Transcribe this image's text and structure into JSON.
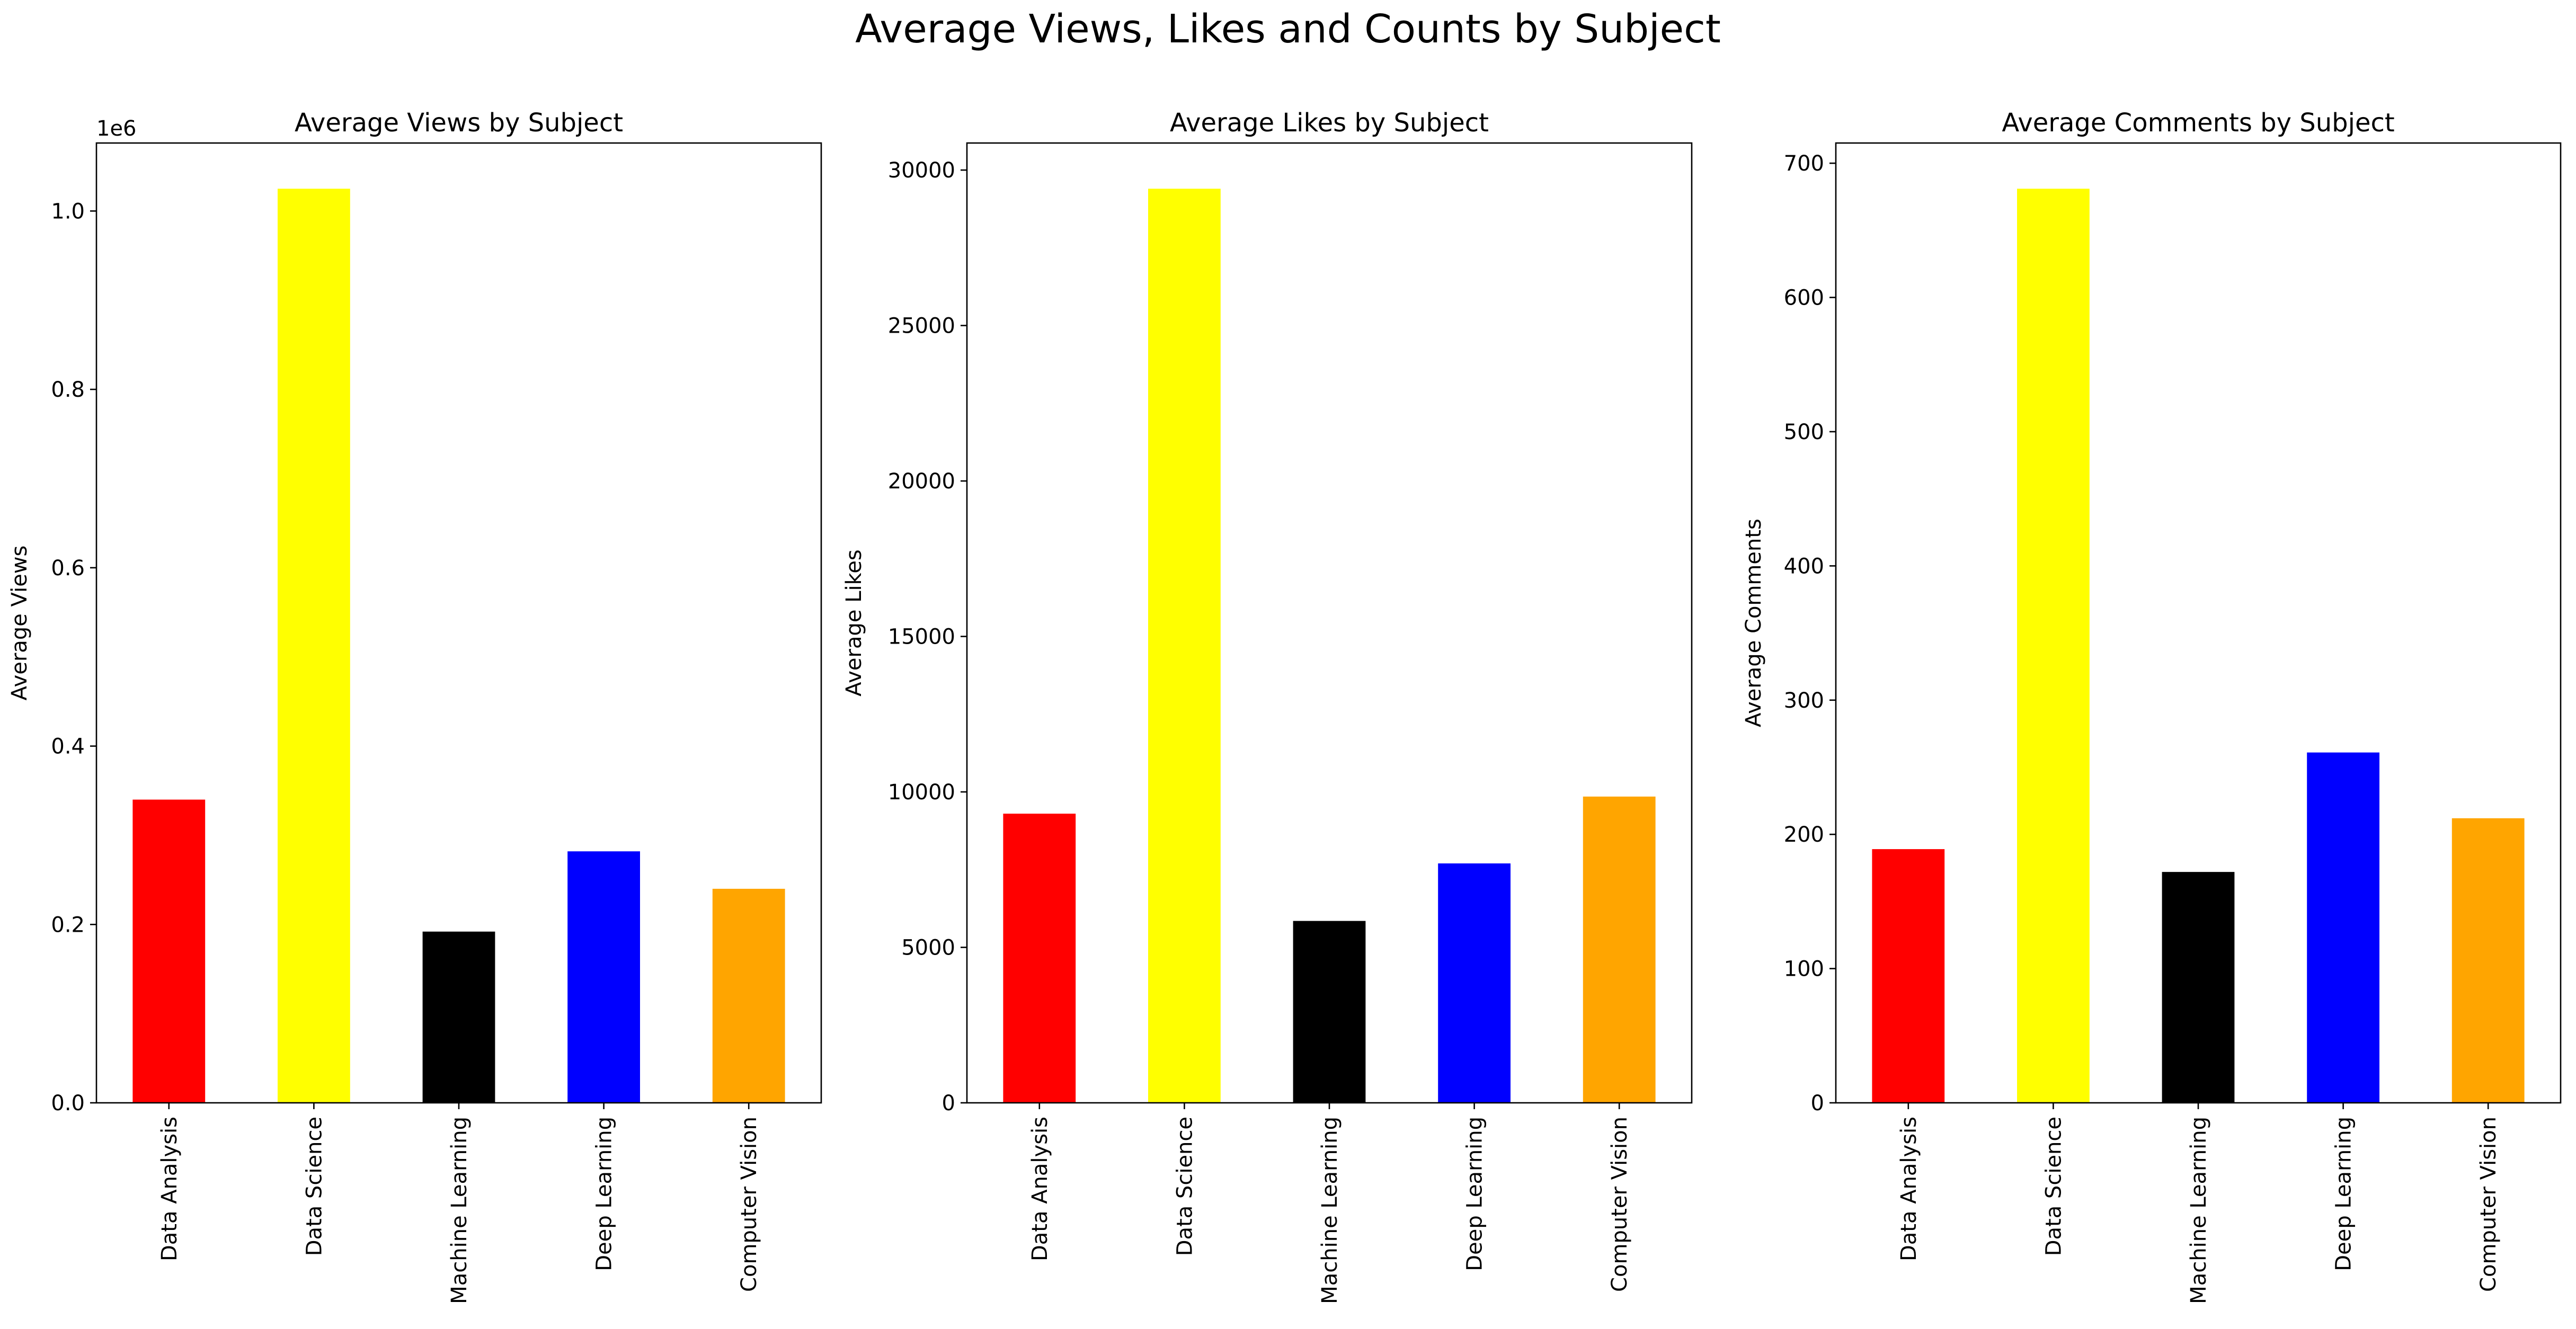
{
  "figure": {
    "title": "Average Views, Likes and Counts by Subject"
  },
  "chart_data": [
    {
      "type": "bar",
      "title": "Average Views by Subject",
      "xlabel": "",
      "ylabel": "Average Views",
      "axis_offset_label": "1e6",
      "categories": [
        "Data Analysis",
        "Data Science",
        "Machine Learning",
        "Deep Learning",
        "Computer Vision"
      ],
      "values": [
        340000,
        1025000,
        192000,
        282000,
        240000
      ],
      "colors": [
        "#ff0000",
        "#ffff00",
        "#000000",
        "#0000ff",
        "#ffa500"
      ],
      "ylim": [
        0,
        1076250
      ],
      "yticks": [
        0,
        200000,
        400000,
        600000,
        800000,
        1000000
      ],
      "ytick_labels": [
        "0.0",
        "0.2",
        "0.4",
        "0.6",
        "0.8",
        "1.0"
      ],
      "grid": false,
      "legend": "none"
    },
    {
      "type": "bar",
      "title": "Average Likes by Subject",
      "xlabel": "",
      "ylabel": "Average Likes",
      "categories": [
        "Data Analysis",
        "Data Science",
        "Machine Learning",
        "Deep Learning",
        "Computer Vision"
      ],
      "values": [
        9300,
        29400,
        5850,
        7700,
        9850
      ],
      "colors": [
        "#ff0000",
        "#ffff00",
        "#000000",
        "#0000ff",
        "#ffa500"
      ],
      "ylim": [
        0,
        30870
      ],
      "yticks": [
        0,
        5000,
        10000,
        15000,
        20000,
        25000,
        30000
      ],
      "ytick_labels": [
        "0",
        "5000",
        "10000",
        "15000",
        "20000",
        "25000",
        "30000"
      ],
      "grid": false,
      "legend": "none"
    },
    {
      "type": "bar",
      "title": "Average Comments by Subject",
      "xlabel": "",
      "ylabel": "Average Comments",
      "categories": [
        "Data Analysis",
        "Data Science",
        "Machine Learning",
        "Deep Learning",
        "Computer Vision"
      ],
      "values": [
        189,
        681,
        172,
        261,
        212
      ],
      "colors": [
        "#ff0000",
        "#ffff00",
        "#000000",
        "#0000ff",
        "#ffa500"
      ],
      "ylim": [
        0,
        715.05
      ],
      "yticks": [
        0,
        100,
        200,
        300,
        400,
        500,
        600,
        700
      ],
      "ytick_labels": [
        "0",
        "100",
        "200",
        "300",
        "400",
        "500",
        "600",
        "700"
      ],
      "grid": false,
      "legend": "none"
    }
  ]
}
